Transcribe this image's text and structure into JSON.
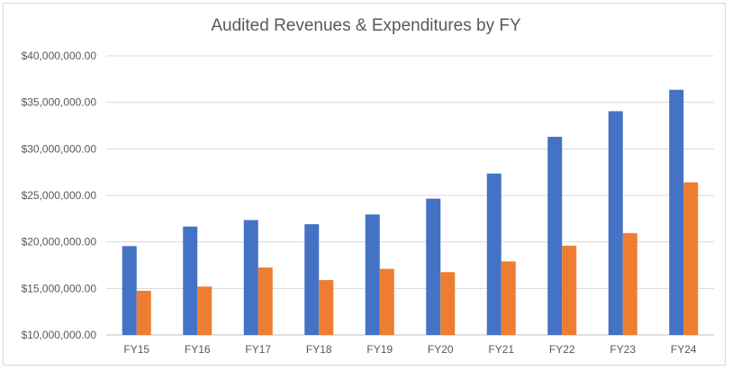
{
  "chart_data": {
    "type": "bar",
    "title": "Audited Revenues & Expenditures by FY",
    "xlabel": "",
    "ylabel": "",
    "categories": [
      "FY15",
      "FY16",
      "FY17",
      "FY18",
      "FY19",
      "FY20",
      "FY21",
      "FY22",
      "FY23",
      "FY24"
    ],
    "series": [
      {
        "color": "#4472c4",
        "values": [
          19550000,
          21650000,
          22350000,
          21900000,
          22950000,
          24650000,
          27350000,
          31300000,
          34050000,
          36350000
        ]
      },
      {
        "color": "#ed7d31",
        "values": [
          14750000,
          15200000,
          17250000,
          15900000,
          17100000,
          16750000,
          17900000,
          19600000,
          20950000,
          26400000
        ]
      }
    ],
    "ylim": [
      10000000,
      40000000
    ],
    "yticks": [
      10000000,
      15000000,
      20000000,
      25000000,
      30000000,
      35000000,
      40000000
    ],
    "ytick_labels": [
      "$10,000,000.00",
      "$15,000,000.00",
      "$20,000,000.00",
      "$25,000,000.00",
      "$30,000,000.00",
      "$35,000,000.00",
      "$40,000,000.00"
    ],
    "grid": true,
    "legend": "none"
  }
}
